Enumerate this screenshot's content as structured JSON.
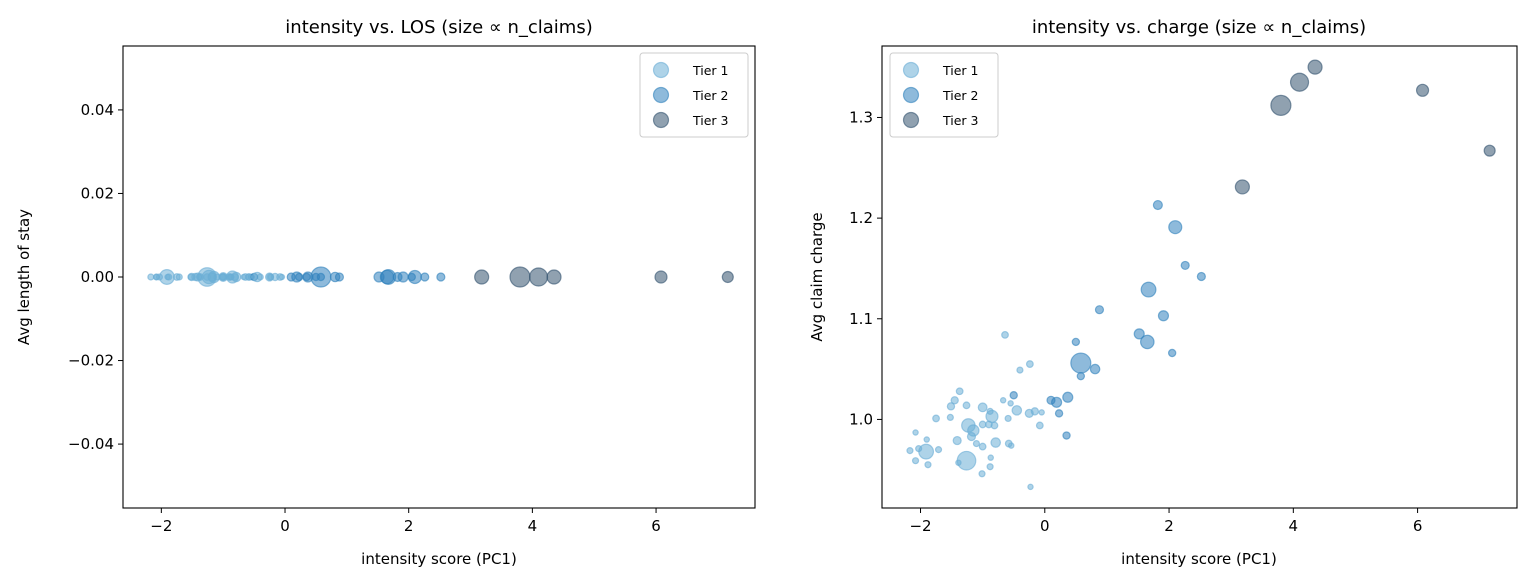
{
  "chart_data": [
    {
      "type": "scatter",
      "title": "intensity vs. LOS (size ∝ n_claims)",
      "xlabel": "intensity score (PC1)",
      "ylabel": "Avg length of stay",
      "xlim": [
        -2.62,
        7.6
      ],
      "ylim": [
        -0.0553,
        0.0553
      ],
      "xticks": [
        -2,
        0,
        2,
        4,
        6
      ],
      "xtick_labels": [
        "−2",
        "0",
        "2",
        "4",
        "6"
      ],
      "yticks": [
        0.04,
        0.02,
        0.0,
        -0.02,
        -0.04
      ],
      "ytick_labels": [
        "0.04",
        "0.02",
        "0.00",
        "−0.02",
        "−0.04"
      ],
      "y_field": "los",
      "legend_position": "top-right",
      "grid": false
    },
    {
      "type": "scatter",
      "title": "intensity vs. charge (size ∝ n_claims)",
      "xlabel": "intensity score (PC1)",
      "ylabel": "Avg claim charge",
      "xlim": [
        -2.62,
        7.6
      ],
      "ylim": [
        0.912,
        1.371
      ],
      "xticks": [
        -2,
        0,
        2,
        4,
        6
      ],
      "xtick_labels": [
        "−2",
        "0",
        "2",
        "4",
        "6"
      ],
      "yticks": [
        1.0,
        1.1,
        1.2,
        1.3
      ],
      "ytick_labels": [
        "1.0",
        "1.1",
        "1.2",
        "1.3"
      ],
      "y_field": "charge",
      "legend_position": "top-left",
      "grid": false
    }
  ],
  "legend": [
    {
      "label": "Tier 1",
      "color": "#6baed6"
    },
    {
      "label": "Tier 2",
      "color": "#3182bd"
    },
    {
      "label": "Tier 3",
      "color": "#34536f"
    }
  ],
  "points": [
    {
      "x": 4.35,
      "los": 0,
      "charge": 1.35,
      "size": 49,
      "tier": 3
    },
    {
      "x": 4.1,
      "los": 0,
      "charge": 1.335,
      "size": 81,
      "tier": 3
    },
    {
      "x": 3.8,
      "los": 0,
      "charge": 1.312,
      "size": 100,
      "tier": 3
    },
    {
      "x": 6.08,
      "los": 0,
      "charge": 1.327,
      "size": 36,
      "tier": 3
    },
    {
      "x": 7.16,
      "los": 0,
      "charge": 1.267,
      "size": 30,
      "tier": 3
    },
    {
      "x": 3.18,
      "los": 0,
      "charge": 1.231,
      "size": 49,
      "tier": 3
    },
    {
      "x": 1.82,
      "los": 0,
      "charge": 1.213,
      "size": 20,
      "tier": 2
    },
    {
      "x": 2.1,
      "los": 0,
      "charge": 1.191,
      "size": 42,
      "tier": 2
    },
    {
      "x": 2.26,
      "los": 0,
      "charge": 1.153,
      "size": 16,
      "tier": 2
    },
    {
      "x": 2.52,
      "los": 0,
      "charge": 1.142,
      "size": 16,
      "tier": 2
    },
    {
      "x": 1.67,
      "los": 0,
      "charge": 1.129,
      "size": 54,
      "tier": 2
    },
    {
      "x": 0.88,
      "los": 0,
      "charge": 1.109,
      "size": 16,
      "tier": 2
    },
    {
      "x": 1.91,
      "los": 0,
      "charge": 1.103,
      "size": 25,
      "tier": 2
    },
    {
      "x": 1.52,
      "los": 0,
      "charge": 1.085,
      "size": 25,
      "tier": 2
    },
    {
      "x": 1.65,
      "los": 0,
      "charge": 1.077,
      "size": 45,
      "tier": 2
    },
    {
      "x": 2.05,
      "los": 0,
      "charge": 1.066,
      "size": 13,
      "tier": 2
    },
    {
      "x": -0.64,
      "los": 0,
      "charge": 1.084,
      "size": 11,
      "tier": 1
    },
    {
      "x": 0.5,
      "los": 0,
      "charge": 1.077,
      "size": 13,
      "tier": 2
    },
    {
      "x": 0.58,
      "los": 0,
      "charge": 1.056,
      "size": 100,
      "tier": 2
    },
    {
      "x": 0.81,
      "los": 0,
      "charge": 1.05,
      "size": 22,
      "tier": 2
    },
    {
      "x": 0.58,
      "los": 0,
      "charge": 1.043,
      "size": 13,
      "tier": 2
    },
    {
      "x": -0.24,
      "los": 0,
      "charge": 1.055,
      "size": 11,
      "tier": 1
    },
    {
      "x": -0.4,
      "los": 0,
      "charge": 1.049,
      "size": 9,
      "tier": 1
    },
    {
      "x": -1.37,
      "los": 0,
      "charge": 1.028,
      "size": 11,
      "tier": 1
    },
    {
      "x": -1.45,
      "los": 0,
      "charge": 1.019,
      "size": 13,
      "tier": 1
    },
    {
      "x": -1.51,
      "los": 0,
      "charge": 1.013,
      "size": 13,
      "tier": 1
    },
    {
      "x": -1.26,
      "los": 0,
      "charge": 1.014,
      "size": 11,
      "tier": 1
    },
    {
      "x": -1.75,
      "los": 0,
      "charge": 1.001,
      "size": 11,
      "tier": 1
    },
    {
      "x": -1.52,
      "los": 0,
      "charge": 1.002,
      "size": 9,
      "tier": 1
    },
    {
      "x": -1.0,
      "los": 0,
      "charge": 1.012,
      "size": 19,
      "tier": 1
    },
    {
      "x": -0.85,
      "los": 0,
      "charge": 1.003,
      "size": 36,
      "tier": 1
    },
    {
      "x": -0.88,
      "los": 0,
      "charge": 1.008,
      "size": 9,
      "tier": 1
    },
    {
      "x": -1.23,
      "los": 0,
      "charge": 0.994,
      "size": 45,
      "tier": 1
    },
    {
      "x": -1.15,
      "los": 0,
      "charge": 0.989,
      "size": 32,
      "tier": 1
    },
    {
      "x": -1.0,
      "los": 0,
      "charge": 0.995,
      "size": 11,
      "tier": 1
    },
    {
      "x": -0.9,
      "los": 0,
      "charge": 0.995,
      "size": 11,
      "tier": 1
    },
    {
      "x": -0.81,
      "los": 0,
      "charge": 0.994,
      "size": 11,
      "tier": 1
    },
    {
      "x": -1.18,
      "los": 0,
      "charge": 0.983,
      "size": 16,
      "tier": 1
    },
    {
      "x": -1.1,
      "los": 0,
      "charge": 0.976,
      "size": 9,
      "tier": 1
    },
    {
      "x": -1.0,
      "los": 0,
      "charge": 0.973,
      "size": 11,
      "tier": 1
    },
    {
      "x": -1.41,
      "los": 0,
      "charge": 0.979,
      "size": 16,
      "tier": 1
    },
    {
      "x": -0.79,
      "los": 0,
      "charge": 0.977,
      "size": 22,
      "tier": 1
    },
    {
      "x": -0.58,
      "los": 0,
      "charge": 0.976,
      "size": 11,
      "tier": 1
    },
    {
      "x": -0.54,
      "los": 0,
      "charge": 0.974,
      "size": 7,
      "tier": 1
    },
    {
      "x": -0.67,
      "los": 0,
      "charge": 1.019,
      "size": 7,
      "tier": 1
    },
    {
      "x": -0.55,
      "los": 0,
      "charge": 1.016,
      "size": 7,
      "tier": 1
    },
    {
      "x": -0.5,
      "los": 0,
      "charge": 1.024,
      "size": 13,
      "tier": 2
    },
    {
      "x": -0.45,
      "los": 0,
      "charge": 1.009,
      "size": 22,
      "tier": 1
    },
    {
      "x": -0.59,
      "los": 0,
      "charge": 1.001,
      "size": 9,
      "tier": 1
    },
    {
      "x": -0.25,
      "los": 0,
      "charge": 1.006,
      "size": 16,
      "tier": 1
    },
    {
      "x": -0.16,
      "los": 0,
      "charge": 1.008,
      "size": 13,
      "tier": 1
    },
    {
      "x": -0.05,
      "los": 0,
      "charge": 1.007,
      "size": 7,
      "tier": 1
    },
    {
      "x": -0.08,
      "los": 0,
      "charge": 0.994,
      "size": 11,
      "tier": 1
    },
    {
      "x": 0.1,
      "los": 0,
      "charge": 1.019,
      "size": 16,
      "tier": 2
    },
    {
      "x": 0.19,
      "los": 0,
      "charge": 1.017,
      "size": 25,
      "tier": 2
    },
    {
      "x": 0.37,
      "los": 0,
      "charge": 1.022,
      "size": 25,
      "tier": 2
    },
    {
      "x": 0.23,
      "los": 0,
      "charge": 1.006,
      "size": 13,
      "tier": 2
    },
    {
      "x": 0.35,
      "los": 0,
      "charge": 0.984,
      "size": 13,
      "tier": 2
    },
    {
      "x": -0.23,
      "los": 0,
      "charge": 0.933,
      "size": 7,
      "tier": 1
    },
    {
      "x": -1.91,
      "los": 0,
      "charge": 0.968,
      "size": 54,
      "tier": 1
    },
    {
      "x": -1.26,
      "los": 0,
      "charge": 0.959,
      "size": 86,
      "tier": 1
    },
    {
      "x": -2.17,
      "los": 0,
      "charge": 0.969,
      "size": 9,
      "tier": 1
    },
    {
      "x": -2.08,
      "los": 0,
      "charge": 0.987,
      "size": 7,
      "tier": 1
    },
    {
      "x": -1.9,
      "los": 0,
      "charge": 0.98,
      "size": 7,
      "tier": 1
    },
    {
      "x": -2.03,
      "los": 0,
      "charge": 0.971,
      "size": 9,
      "tier": 1
    },
    {
      "x": -1.71,
      "los": 0,
      "charge": 0.97,
      "size": 9,
      "tier": 1
    },
    {
      "x": -2.08,
      "los": 0,
      "charge": 0.959,
      "size": 9,
      "tier": 1
    },
    {
      "x": -1.88,
      "los": 0,
      "charge": 0.955,
      "size": 9,
      "tier": 1
    },
    {
      "x": -1.39,
      "los": 0,
      "charge": 0.957,
      "size": 7,
      "tier": 1
    },
    {
      "x": -0.87,
      "los": 0,
      "charge": 0.962,
      "size": 7,
      "tier": 1
    },
    {
      "x": -0.88,
      "los": 0,
      "charge": 0.953,
      "size": 9,
      "tier": 1
    },
    {
      "x": -1.01,
      "los": 0,
      "charge": 0.946,
      "size": 9,
      "tier": 1
    }
  ]
}
